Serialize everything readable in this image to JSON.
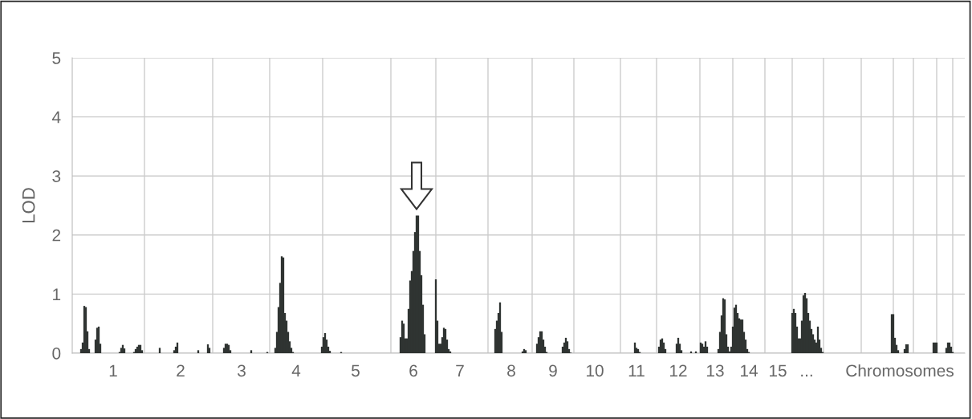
{
  "chart_data": {
    "type": "bar",
    "ylabel": "LOD",
    "color": "#2f3432",
    "categories": [
      null,
      null,
      null,
      null,
      null,
      null,
      null,
      null,
      null,
      null,
      null,
      null,
      null,
      null,
      null,
      null,
      null,
      null,
      null,
      null,
      null,
      null,
      null,
      null,
      null,
      "1",
      null,
      null,
      null,
      null,
      null,
      null,
      null,
      null,
      null,
      null,
      null,
      null,
      null,
      null,
      null,
      null,
      null,
      null,
      null,
      null,
      null,
      null,
      null,
      null,
      null,
      null,
      null,
      null,
      null,
      null,
      null,
      null,
      null,
      null,
      null,
      null,
      null,
      null,
      null,
      null,
      null,
      "2",
      null,
      null,
      null,
      null,
      null,
      null,
      null,
      null,
      null,
      null,
      null,
      null,
      null,
      null,
      null,
      null,
      null,
      null,
      null,
      null,
      null,
      null,
      null,
      null,
      null,
      null,
      null,
      null,
      null,
      null,
      null,
      null,
      null,
      null,
      null,
      null,
      null,
      "3",
      null,
      null,
      null,
      null,
      null,
      null,
      null,
      null,
      null,
      null,
      null,
      null,
      null,
      null,
      null,
      null,
      null,
      null,
      null,
      null,
      null,
      null,
      null,
      null,
      null,
      null,
      null,
      null,
      null,
      null,
      null,
      null,
      null,
      "4",
      null,
      null,
      null,
      null,
      null,
      null,
      null,
      null,
      null,
      null,
      null,
      null,
      null,
      null,
      null,
      null,
      null,
      null,
      null,
      null,
      null,
      null,
      null,
      null,
      null,
      null,
      null,
      null,
      null,
      null,
      null,
      null,
      null,
      null,
      null,
      null,
      "5",
      null,
      null,
      null,
      null,
      null,
      null,
      null,
      null,
      null,
      null,
      null,
      null,
      null,
      null,
      null,
      null,
      null,
      null,
      null,
      null,
      null,
      null,
      null,
      null,
      null,
      null,
      null,
      null,
      null,
      null,
      null,
      null,
      null,
      null,
      null,
      "6",
      null,
      null,
      null,
      null,
      null,
      null,
      null,
      null,
      null,
      null,
      null,
      null,
      null,
      null,
      null,
      null,
      null,
      null,
      null,
      null,
      null,
      null,
      null,
      null,
      null,
      null,
      null,
      null,
      "7",
      null,
      null,
      null,
      null,
      null,
      null,
      null,
      null,
      null,
      null,
      null,
      null,
      null,
      null,
      null,
      null,
      null,
      null,
      null,
      null,
      null,
      null,
      null,
      null,
      null,
      null,
      null,
      null,
      null,
      null,
      null,
      "8",
      null,
      null,
      null,
      null,
      null,
      null,
      null,
      null,
      null,
      null,
      null,
      null,
      null,
      null,
      null,
      null,
      null,
      null,
      null,
      null,
      null,
      null,
      null,
      null,
      null,
      "9",
      null,
      null,
      null,
      null,
      null,
      null,
      null,
      null,
      null,
      null,
      null,
      null,
      null,
      null,
      null,
      null,
      null,
      null,
      null,
      null,
      null,
      null,
      null,
      null,
      null,
      "10",
      null,
      null,
      null,
      null,
      null,
      null,
      null,
      null,
      null,
      null,
      null,
      null,
      null,
      null,
      null,
      null,
      null,
      null,
      null,
      null,
      null,
      null,
      null,
      null,
      null,
      "11",
      null,
      null,
      null,
      null,
      null,
      null,
      null,
      null,
      null,
      null,
      null,
      null,
      null,
      null,
      null,
      null,
      null,
      null,
      null,
      null,
      null,
      null,
      null,
      null,
      null,
      "12",
      null,
      null,
      null,
      null,
      null,
      null,
      null,
      null,
      null,
      null,
      null,
      null,
      null,
      null,
      null,
      null,
      null,
      null,
      null,
      null,
      null,
      null,
      "13",
      null,
      null,
      null,
      null,
      null,
      null,
      null,
      null,
      null,
      null,
      null,
      null,
      null,
      null,
      null,
      null,
      null,
      null,
      null,
      null,
      "14",
      null,
      null,
      null,
      null,
      null,
      null,
      null,
      null,
      null,
      null,
      null,
      null,
      null,
      null,
      null,
      null,
      null,
      "15",
      null,
      null,
      null,
      null,
      null,
      null,
      null,
      null,
      null,
      null,
      null,
      null,
      null,
      null,
      null,
      null,
      null,
      "...",
      null,
      null,
      null,
      null,
      null,
      null,
      null,
      null,
      null,
      null,
      null,
      null,
      null,
      null,
      null,
      null,
      null,
      null,
      null,
      null,
      null,
      null,
      null,
      null,
      null,
      null,
      null,
      null,
      null,
      null,
      null,
      null,
      null,
      null,
      null,
      null,
      null,
      null,
      null,
      null,
      null,
      null,
      null,
      null,
      null,
      null,
      null,
      null,
      null,
      null,
      null,
      null,
      null,
      null,
      null,
      null,
      null,
      "Chromosomes",
      null,
      null,
      null,
      null,
      null,
      null,
      null,
      null,
      null,
      null,
      null,
      null,
      null,
      null,
      null,
      null,
      null,
      null,
      null,
      null,
      null,
      null,
      null,
      null,
      null,
      null,
      null,
      null,
      null,
      null,
      null,
      null,
      null,
      null,
      null,
      null,
      null,
      null,
      null,
      null
    ],
    "values": [
      null,
      null,
      null,
      null,
      null,
      0.07,
      0.18,
      0.8,
      0.78,
      0.37,
      0.07,
      null,
      null,
      null,
      0.23,
      0.43,
      0.45,
      0.16,
      null,
      null,
      null,
      null,
      null,
      null,
      null,
      null,
      null,
      null,
      null,
      0.02,
      0.09,
      0.14,
      0.08,
      null,
      null,
      null,
      null,
      null,
      0.02,
      0.07,
      0.11,
      0.14,
      0.14,
      0.05,
      null,
      null,
      null,
      null,
      null,
      null,
      null,
      null,
      null,
      null,
      0.09,
      null,
      null,
      null,
      null,
      null,
      null,
      null,
      null,
      0.05,
      0.11,
      0.18,
      null,
      null,
      null,
      null,
      null,
      null,
      null,
      null,
      null,
      null,
      null,
      null,
      0.05,
      null,
      null,
      null,
      null,
      null,
      0.15,
      0.09,
      null,
      null,
      null,
      null,
      null,
      null,
      null,
      null,
      0.09,
      0.16,
      0.16,
      0.14,
      0.05,
      null,
      null,
      null,
      null,
      null,
      null,
      null,
      null,
      null,
      null,
      null,
      null,
      0.05,
      null,
      null,
      null,
      null,
      null,
      null,
      null,
      null,
      null,
      0.02,
      null,
      null,
      null,
      null,
      0.09,
      0.36,
      0.78,
      1.19,
      1.64,
      1.62,
      0.68,
      0.55,
      0.36,
      0.2,
      0.09,
      0.02,
      null,
      null,
      null,
      null,
      null,
      null,
      null,
      null,
      null,
      null,
      null,
      null,
      null,
      null,
      null,
      null,
      null,
      0.11,
      0.27,
      0.34,
      0.23,
      0.11,
      0.04,
      null,
      null,
      null,
      null,
      null,
      null,
      0.02,
      null,
      null,
      null,
      null,
      null,
      null,
      null,
      null,
      null,
      null,
      null,
      null,
      null,
      null,
      null,
      null,
      null,
      null,
      null,
      null,
      null,
      null,
      null,
      null,
      null,
      null,
      null,
      null,
      null,
      null,
      null,
      null,
      null,
      null,
      null,
      null,
      0.27,
      0.55,
      0.5,
      0.25,
      0.25,
      0.75,
      1.23,
      1.39,
      1.73,
      2.05,
      2.33,
      2.33,
      1.73,
      1.32,
      0.82,
      0.32,
      null,
      null,
      null,
      null,
      null,
      null,
      1.25,
      0.55,
      0.16,
      0.16,
      0.27,
      0.43,
      0.41,
      0.23,
      0.07,
      0.03,
      null,
      null,
      null,
      null,
      null,
      null,
      null,
      null,
      null,
      null,
      null,
      null,
      null,
      null,
      null,
      null,
      null,
      null,
      null,
      null,
      null,
      null,
      null,
      null,
      null,
      null,
      null,
      0.41,
      0.55,
      0.68,
      0.86,
      0.36,
      null,
      null,
      null,
      null,
      null,
      null,
      null,
      null,
      null,
      null,
      null,
      null,
      0.03,
      0.07,
      0.05,
      null,
      null,
      null,
      null,
      null,
      null,
      0.16,
      0.27,
      0.37,
      0.37,
      0.23,
      0.11,
      0.02,
      null,
      null,
      null,
      null,
      null,
      null,
      null,
      null,
      null,
      0.11,
      0.18,
      0.26,
      0.2,
      0.07,
      0.01,
      null,
      null,
      null,
      null,
      null,
      null,
      null,
      null,
      null,
      null,
      null,
      null,
      null,
      null,
      null,
      null,
      null,
      null,
      null,
      null,
      null,
      null,
      null,
      null,
      null,
      null,
      null,
      null,
      null,
      null,
      null,
      null,
      null,
      null,
      null,
      null,
      null,
      null,
      null,
      0.18,
      0.09,
      0.07,
      0.02,
      null,
      null,
      null,
      null,
      null,
      null,
      null,
      null,
      null,
      null,
      null,
      0.11,
      0.23,
      0.25,
      0.18,
      0.07,
      null,
      null,
      null,
      null,
      null,
      null,
      0.16,
      0.26,
      0.16,
      0.05,
      null,
      null,
      null,
      null,
      null,
      0.03,
      null,
      null,
      0.03,
      null,
      null,
      0.18,
      0.16,
      0.11,
      0.2,
      0.11,
      null,
      null,
      null,
      null,
      null,
      null,
      0.07,
      0.36,
      0.64,
      0.93,
      0.91,
      0.32,
      0.11,
      0.03,
      0.11,
      0.45,
      0.77,
      0.82,
      0.68,
      0.59,
      0.57,
      0.57,
      0.36,
      0.23,
      0.07,
      0.02,
      null,
      null,
      null,
      null,
      null,
      null,
      null,
      null,
      null,
      null,
      null,
      null,
      null,
      null,
      null,
      null,
      null,
      null,
      null,
      null,
      null,
      null,
      null,
      null,
      null,
      null,
      0.68,
      0.75,
      0.68,
      0.45,
      0.25,
      0.25,
      0.55,
      0.98,
      1.02,
      0.93,
      0.68,
      0.55,
      0.41,
      0.32,
      0.23,
      0.18,
      0.45,
      0.23,
      0.09,
      0.02,
      null,
      null,
      null,
      null,
      null,
      null,
      null,
      null,
      null,
      null,
      null,
      null,
      null,
      null,
      null,
      null,
      null,
      null,
      null,
      null,
      null,
      null,
      null,
      null,
      null,
      null,
      null,
      null,
      null,
      null,
      null,
      null,
      null,
      null,
      null,
      null,
      null,
      null,
      null,
      null,
      null,
      null,
      0.66,
      0.66,
      0.26,
      0.14,
      0.05,
      null,
      null,
      null,
      0.07,
      0.15,
      0.15,
      null,
      null,
      null,
      null,
      null,
      null,
      null,
      null,
      null,
      null,
      null,
      null,
      null,
      null,
      null,
      0.18,
      0.18,
      0.18,
      null,
      null,
      null,
      null,
      null,
      0.09,
      0.18,
      0.18,
      0.11,
      0.02,
      null,
      null,
      null,
      null,
      null,
      null,
      null
    ],
    "ylim": [
      0,
      5
    ],
    "yticks": [
      0,
      1,
      2,
      3,
      4,
      5
    ],
    "grid": "y"
  }
}
